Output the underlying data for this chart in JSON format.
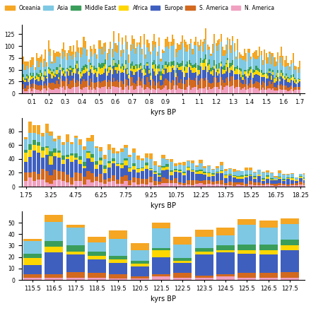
{
  "legend_labels": [
    "Oceania",
    "Asia",
    "Middle East",
    "Africa",
    "Europe",
    "S. America",
    "N. America"
  ],
  "legend_colors": [
    "#F5A623",
    "#7EC8E3",
    "#3A9E5A",
    "#FFD700",
    "#3F5FBF",
    "#D2691E",
    "#F0A0C0"
  ],
  "panel1": {
    "xlabel": "kyrs BP",
    "xstart": 0.01,
    "xend": 1.71,
    "xstep": 0.01,
    "xticks": [
      0.1,
      0.2,
      0.3,
      0.4,
      0.5,
      0.6,
      0.7,
      0.8,
      0.9,
      1.0,
      1.1,
      1.2,
      1.3,
      1.4,
      1.5,
      1.6,
      1.7
    ],
    "xticklabels": [
      "0.1",
      "0.2",
      "0.3",
      "0.4",
      "0.5",
      "0.6",
      "0.7",
      "0.8",
      "0.9",
      "1",
      "1.1",
      "1.2",
      "1.3",
      "1.4",
      "1.5",
      "1.6",
      "1.7"
    ]
  },
  "panel2": {
    "xlabel": "kyrs BP",
    "xstart": 1.75,
    "xend": 18.5,
    "xstep": 0.25,
    "xticks": [
      1.75,
      3.25,
      4.75,
      6.25,
      7.75,
      9.25,
      10.75,
      12.25,
      13.75,
      15.25,
      16.75,
      18.25
    ],
    "xticklabels": [
      "1.75",
      "3.25",
      "4.75",
      "6.25",
      "7.75",
      "9.25",
      "10.75",
      "12.25",
      "13.75",
      "15.25",
      "16.75",
      "18.25"
    ]
  },
  "panel3": {
    "xlabel": "kyrs BP",
    "xstart": 115.5,
    "xend": 128.5,
    "xstep": 1.0,
    "xticks": [
      115.5,
      116.5,
      117.5,
      118.5,
      119.5,
      120.5,
      121.5,
      122.5,
      123.5,
      124.5,
      125.5,
      126.5,
      127.5
    ],
    "xticklabels": [
      "115.5",
      "116.5",
      "117.5",
      "118.5",
      "119.5",
      "120.5",
      "121.5",
      "122.5",
      "123.5",
      "124.5",
      "125.5",
      "126.5",
      "127.5"
    ]
  }
}
